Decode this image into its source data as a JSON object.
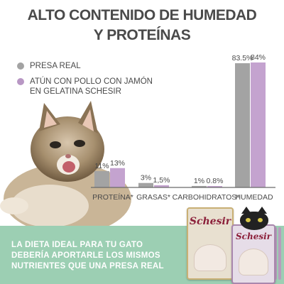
{
  "title_line1": "ALTO CONTENIDO DE HUMEDAD",
  "title_line2": "Y PROTEÍNAS",
  "legend": [
    {
      "label": "PRESA REAL",
      "color": "#a3a3a3"
    },
    {
      "label_line1": "ATÚN CON POLLO CON JAMÓN",
      "label_line2": "EN GELATINA SCHESIR",
      "color": "#b897c4"
    }
  ],
  "chart_data": {
    "type": "bar",
    "categories": [
      "PROTEÍNA*",
      "GRASAS*",
      "CARBOHIDRATOS*",
      "HUMEDAD"
    ],
    "series": [
      {
        "name": "PRESA REAL",
        "color": "#a3a3a3",
        "values": [
          11,
          3,
          1,
          83.5
        ],
        "labels": [
          "11%",
          "3%",
          "1%",
          "83.5%"
        ]
      },
      {
        "name": "ATÚN CON POLLO CON JAMÓN EN GELATINA SCHESIR",
        "color": "#c4a3cf",
        "values": [
          13,
          1.5,
          0.8,
          84
        ],
        "labels": [
          "13%",
          "1,5%",
          "0.8%",
          "84%"
        ]
      }
    ],
    "ylim": [
      0,
      84
    ],
    "grid": false,
    "legend_position": "top-left"
  },
  "footer": {
    "line1": "LA DIETA IDEAL PARA TU GATO",
    "line2": "DEBERÍA APORTARLE LOS MISMOS",
    "line3": "NUTRIENTES QUE UNA PRESA REAL"
  },
  "product": {
    "brand": "Schesir"
  }
}
